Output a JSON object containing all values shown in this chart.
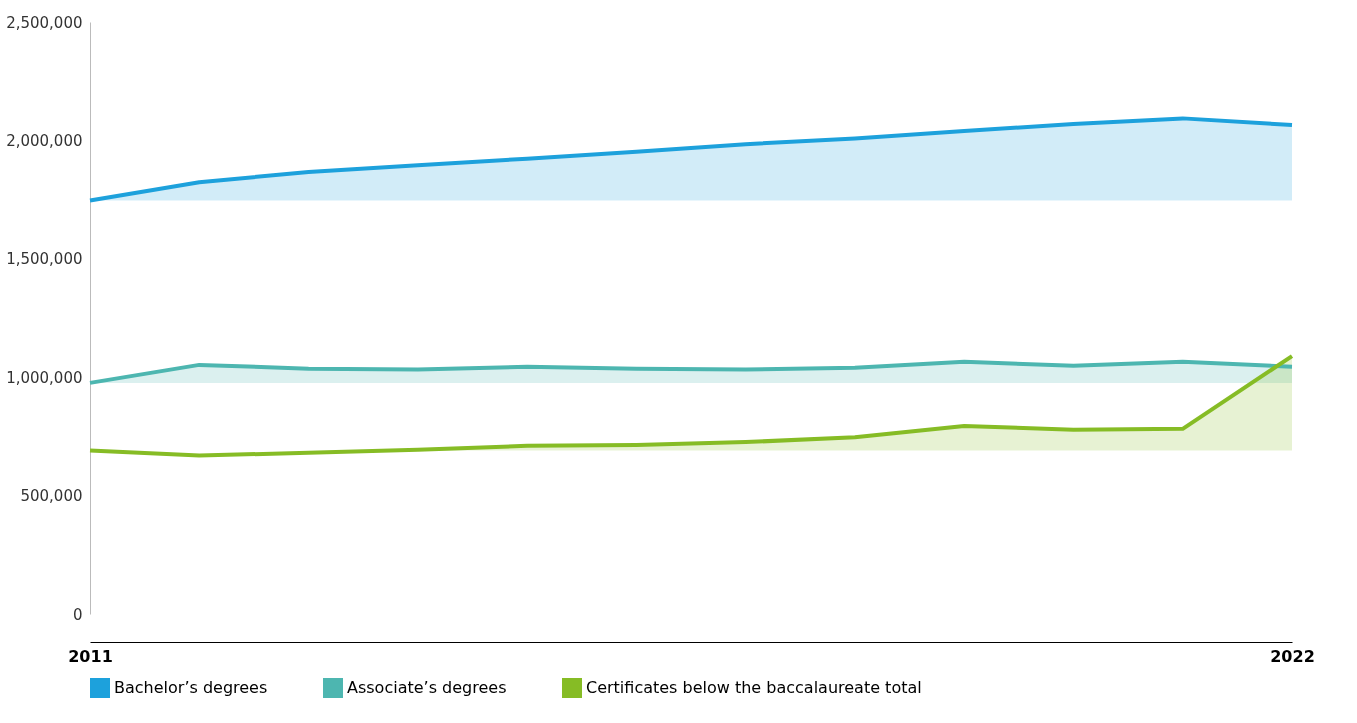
{
  "chart_data": {
    "type": "line",
    "x": [
      2011,
      2012,
      2013,
      2014,
      2015,
      2016,
      2017,
      2018,
      2019,
      2020,
      2021,
      2022
    ],
    "series": [
      {
        "name": "Bachelor’s degrees",
        "color": "#1da1dc",
        "values": [
          1746000,
          1823000,
          1867000,
          1895000,
          1923000,
          1952000,
          1984000,
          2008000,
          2040000,
          2069000,
          2093000,
          2065000
        ],
        "lower": [
          1746000,
          1746000,
          1746000,
          1746000,
          1746000,
          1746000,
          1746000,
          1746000,
          1746000,
          1746000,
          1746000,
          1746000
        ],
        "upper": [
          1746000,
          1823000,
          1867000,
          1895000,
          1923000,
          1952000,
          1984000,
          2008000,
          2040000,
          2069000,
          2093000,
          2065000
        ]
      },
      {
        "name": "Associate’s degrees",
        "color": "#4db6b0",
        "values": [
          976000,
          1052000,
          1036000,
          1032000,
          1044000,
          1036000,
          1032000,
          1040000,
          1065000,
          1048000,
          1065000,
          1044000
        ],
        "lower": [
          976000,
          976000,
          976000,
          976000,
          976000,
          976000,
          976000,
          976000,
          976000,
          976000,
          976000,
          976000
        ],
        "upper": [
          976000,
          1052000,
          1036000,
          1032000,
          1044000,
          1036000,
          1032000,
          1040000,
          1065000,
          1048000,
          1065000,
          1044000
        ]
      },
      {
        "name": "Certificates below the baccalaureate total",
        "color": "#86bc25",
        "values": [
          690000,
          669000,
          681000,
          694000,
          710000,
          714000,
          726000,
          746000,
          794000,
          778000,
          782000,
          1089000
        ],
        "lower": [
          690000,
          690000,
          690000,
          690000,
          690000,
          690000,
          690000,
          690000,
          690000,
          690000,
          690000,
          690000
        ],
        "upper": [
          690000,
          690000,
          690000,
          694000,
          710000,
          714000,
          726000,
          746000,
          794000,
          778000,
          782000,
          1089000
        ]
      }
    ],
    "xlim": [
      2011,
      2022
    ],
    "xticks": [
      2011,
      2022
    ],
    "ylim": [
      0,
      2500000
    ],
    "yticks": [
      0,
      {
        "value": 500000,
        "label": "500,000"
      },
      {
        "value": 1000000,
        "label": "1,000,000"
      },
      {
        "value": 1500000,
        "label": "1,500,000"
      },
      {
        "value": 2000000,
        "label": "2,000,000"
      },
      {
        "value": 2500000,
        "label": "2,500,000"
      }
    ],
    "grid": false,
    "legend": "bottom left",
    "marker": "none",
    "line_style": "solid"
  }
}
